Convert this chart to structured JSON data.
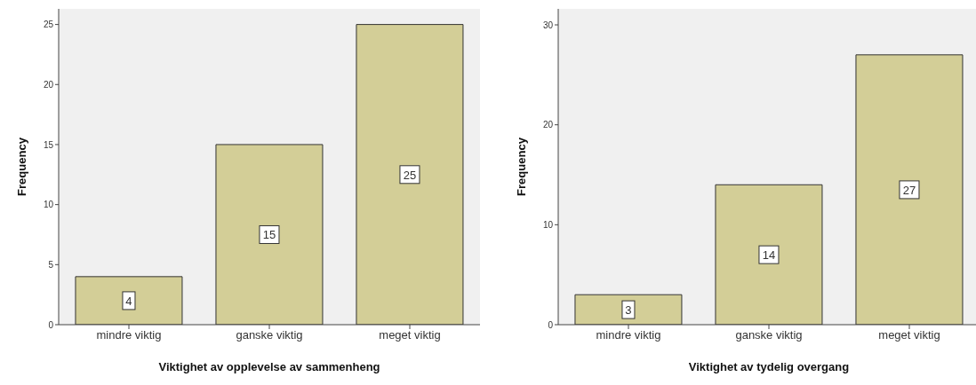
{
  "chart_data": [
    {
      "type": "bar",
      "categories": [
        "mindre viktig",
        "ganske viktig",
        "meget viktig"
      ],
      "values": [
        4,
        15,
        25
      ],
      "color": "#d3ce97",
      "xlabel": "Viktighet av opplevelse av sammenheng",
      "ylabel": "Frequency",
      "ylim": [
        0,
        26.3
      ],
      "yticks": [
        0,
        5,
        10,
        15,
        20,
        25
      ],
      "grid": false,
      "legend": false,
      "data_labels": true
    },
    {
      "type": "bar",
      "categories": [
        "mindre viktig",
        "ganske viktig",
        "meget viktig"
      ],
      "values": [
        3,
        14,
        27
      ],
      "color": "#d3ce97",
      "xlabel": "Viktighet av tydelig overgang",
      "ylabel": "Frequency",
      "ylim": [
        0,
        31.6
      ],
      "yticks": [
        0,
        10,
        20,
        30
      ],
      "grid": false,
      "legend": false,
      "data_labels": true
    }
  ]
}
